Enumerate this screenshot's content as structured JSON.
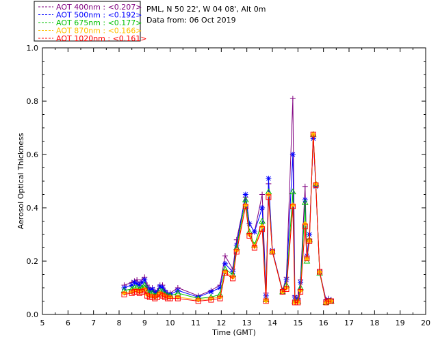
{
  "header": {
    "station": "PML, N 50 22', W 04 08', Alt 0m",
    "date_line": "Data from: 06 Oct 2019"
  },
  "chart_data": {
    "type": "line",
    "title": "",
    "xlabel": "Time (GMT)",
    "ylabel": "Aerosol Optical Thickness",
    "xlim": [
      5,
      20
    ],
    "ylim": [
      0,
      1
    ],
    "xticks": [
      "5",
      "6",
      "7",
      "8",
      "9",
      "10",
      "11",
      "12",
      "13",
      "14",
      "15",
      "16",
      "17",
      "18",
      "19",
      "20"
    ],
    "yticks": [
      "0.0",
      "0.2",
      "0.4",
      "0.6",
      "0.8",
      "1.0"
    ],
    "grid": false,
    "legend_position": "top-left",
    "x": [
      8.2,
      8.5,
      8.6,
      8.7,
      8.8,
      8.9,
      9.0,
      9.1,
      9.2,
      9.3,
      9.4,
      9.5,
      9.6,
      9.7,
      9.8,
      9.9,
      10.0,
      10.3,
      11.1,
      11.6,
      11.95,
      12.15,
      12.45,
      12.6,
      12.95,
      13.1,
      13.3,
      13.6,
      13.75,
      13.85,
      14.0,
      14.4,
      14.55,
      14.8,
      14.88,
      15.0,
      15.1,
      15.28,
      15.35,
      15.45,
      15.6,
      15.7,
      15.85,
      16.1,
      16.2,
      16.3
    ],
    "series": [
      {
        "name": "AOT  400nm : <0.207>",
        "color": "#800080",
        "marker": "plus",
        "values": [
          0.11,
          0.12,
          0.125,
          0.13,
          0.115,
          0.13,
          0.14,
          0.11,
          0.095,
          0.1,
          0.085,
          0.09,
          0.11,
          0.11,
          0.09,
          0.08,
          0.08,
          0.1,
          0.07,
          0.09,
          0.11,
          0.22,
          0.17,
          0.28,
          0.44,
          0.34,
          0.31,
          0.45,
          0.08,
          0.49,
          0.24,
          0.09,
          0.14,
          0.81,
          0.07,
          0.06,
          0.13,
          0.48,
          0.21,
          0.28,
          0.67,
          0.49,
          0.16,
          0.055,
          0.06,
          0.055
        ]
      },
      {
        "name": "AOT  500nm : <0.192>",
        "color": "#0000ff",
        "marker": "star",
        "values": [
          0.1,
          0.11,
          0.12,
          0.115,
          0.11,
          0.12,
          0.13,
          0.1,
          0.09,
          0.095,
          0.08,
          0.085,
          0.105,
          0.1,
          0.085,
          0.075,
          0.075,
          0.09,
          0.065,
          0.085,
          0.1,
          0.19,
          0.16,
          0.26,
          0.45,
          0.34,
          0.31,
          0.4,
          0.07,
          0.51,
          0.24,
          0.085,
          0.13,
          0.6,
          0.065,
          0.055,
          0.12,
          0.43,
          0.22,
          0.3,
          0.66,
          0.48,
          0.16,
          0.05,
          0.055,
          0.05
        ]
      },
      {
        "name": "AOT  675nm : <0.177>",
        "color": "#00c000",
        "marker": "triangle",
        "values": [
          0.09,
          0.095,
          0.1,
          0.1,
          0.095,
          0.1,
          0.11,
          0.085,
          0.08,
          0.08,
          0.07,
          0.075,
          0.09,
          0.085,
          0.075,
          0.07,
          0.07,
          0.08,
          0.06,
          0.065,
          0.075,
          0.17,
          0.15,
          0.25,
          0.43,
          0.31,
          0.26,
          0.35,
          0.055,
          0.46,
          0.235,
          0.085,
          0.11,
          0.46,
          0.05,
          0.05,
          0.1,
          0.42,
          0.2,
          0.28,
          0.675,
          0.49,
          0.155,
          0.045,
          0.05,
          0.05
        ]
      },
      {
        "name": "AOT  870nm : <0.166>",
        "color": "#ffc000",
        "marker": "diamond",
        "values": [
          0.08,
          0.085,
          0.09,
          0.09,
          0.085,
          0.09,
          0.095,
          0.075,
          0.07,
          0.07,
          0.065,
          0.07,
          0.08,
          0.075,
          0.07,
          0.065,
          0.065,
          0.065,
          0.055,
          0.06,
          0.065,
          0.16,
          0.14,
          0.24,
          0.41,
          0.3,
          0.255,
          0.33,
          0.052,
          0.45,
          0.235,
          0.085,
          0.1,
          0.41,
          0.045,
          0.047,
          0.09,
          0.34,
          0.21,
          0.275,
          0.675,
          0.49,
          0.16,
          0.045,
          0.05,
          0.05
        ]
      },
      {
        "name": "AOT 1020nm : <0.161>",
        "color": "#ff0000",
        "marker": "square",
        "values": [
          0.075,
          0.08,
          0.085,
          0.085,
          0.08,
          0.085,
          0.09,
          0.07,
          0.065,
          0.065,
          0.06,
          0.065,
          0.075,
          0.07,
          0.065,
          0.06,
          0.06,
          0.06,
          0.05,
          0.055,
          0.06,
          0.155,
          0.135,
          0.235,
          0.405,
          0.295,
          0.25,
          0.32,
          0.05,
          0.44,
          0.235,
          0.085,
          0.095,
          0.405,
          0.045,
          0.045,
          0.085,
          0.33,
          0.21,
          0.275,
          0.675,
          0.485,
          0.16,
          0.045,
          0.05,
          0.05
        ]
      }
    ]
  }
}
